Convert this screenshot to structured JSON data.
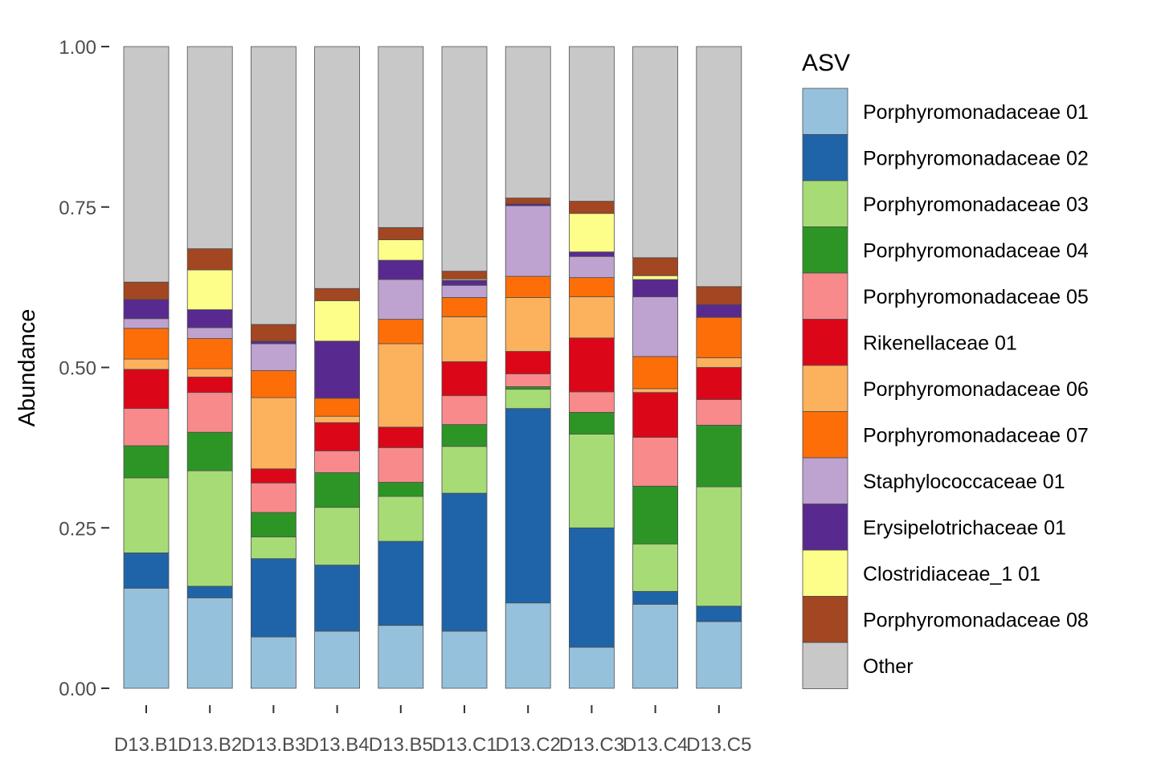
{
  "chart_data": {
    "type": "bar",
    "stacked": true,
    "ylabel": "Abundance",
    "xlabel": "",
    "ylim": [
      0,
      1
    ],
    "yticks": [
      "0.00",
      "0.25",
      "0.50",
      "0.75",
      "1.00"
    ],
    "ytick_values": [
      0,
      0.25,
      0.5,
      0.75,
      1
    ],
    "categories": [
      "D13.B1",
      "D13.B2",
      "D13.B3",
      "D13.B4",
      "D13.B5",
      "D13.C1",
      "D13.C2",
      "D13.C3",
      "D13.C4",
      "D13.C5"
    ],
    "legend": {
      "title": "ASV",
      "position": "right"
    },
    "series": [
      {
        "name": "Porphyromonadaceae 01",
        "color": "#96c1dc",
        "values": [
          0.156,
          0.141,
          0.08,
          0.089,
          0.098,
          0.089,
          0.133,
          0.064,
          0.131,
          0.104
        ]
      },
      {
        "name": "Porphyromonadaceae 02",
        "color": "#1f64a8",
        "values": [
          0.055,
          0.018,
          0.122,
          0.103,
          0.131,
          0.215,
          0.303,
          0.186,
          0.02,
          0.024
        ]
      },
      {
        "name": "Porphyromonadaceae 03",
        "color": "#a7db76",
        "values": [
          0.117,
          0.18,
          0.034,
          0.09,
          0.07,
          0.073,
          0.03,
          0.146,
          0.074,
          0.186
        ]
      },
      {
        "name": "Porphyromonadaceae 04",
        "color": "#2d9525",
        "values": [
          0.05,
          0.06,
          0.038,
          0.054,
          0.022,
          0.034,
          0.004,
          0.034,
          0.09,
          0.096
        ]
      },
      {
        "name": "Porphyromonadaceae 05",
        "color": "#f88a8c",
        "values": [
          0.058,
          0.062,
          0.046,
          0.034,
          0.054,
          0.045,
          0.02,
          0.032,
          0.076,
          0.04
        ]
      },
      {
        "name": "Rikenellaceae 01",
        "color": "#dc0619",
        "values": [
          0.061,
          0.024,
          0.022,
          0.044,
          0.032,
          0.053,
          0.035,
          0.084,
          0.07,
          0.05
        ]
      },
      {
        "name": "Porphyromonadaceae 06",
        "color": "#fcb15d",
        "values": [
          0.016,
          0.013,
          0.111,
          0.01,
          0.13,
          0.07,
          0.084,
          0.064,
          0.006,
          0.015
        ]
      },
      {
        "name": "Porphyromonadaceae 07",
        "color": "#fd6e09",
        "values": [
          0.048,
          0.047,
          0.042,
          0.028,
          0.038,
          0.03,
          0.033,
          0.03,
          0.05,
          0.063
        ]
      },
      {
        "name": "Staphylococcaceae 01",
        "color": "#bea2cf",
        "values": [
          0.015,
          0.017,
          0.042,
          0.0,
          0.062,
          0.019,
          0.11,
          0.033,
          0.093,
          0.0
        ]
      },
      {
        "name": "Erysipelotrichaceae 01",
        "color": "#582a8f",
        "values": [
          0.03,
          0.028,
          0.004,
          0.089,
          0.03,
          0.008,
          0.003,
          0.007,
          0.027,
          0.02
        ]
      },
      {
        "name": "Clostridiaceae_1 01",
        "color": "#fdfe8a",
        "values": [
          0.0,
          0.062,
          0.0,
          0.063,
          0.032,
          0.002,
          0.0,
          0.06,
          0.006,
          0.0
        ]
      },
      {
        "name": "Porphyromonadaceae 08",
        "color": "#a34622",
        "values": [
          0.027,
          0.033,
          0.026,
          0.019,
          0.019,
          0.012,
          0.009,
          0.019,
          0.028,
          0.028
        ]
      },
      {
        "name": "Other",
        "color": "#c8c8c8",
        "values": [
          0.367,
          0.315,
          0.433,
          0.377,
          0.282,
          0.35,
          0.236,
          0.241,
          0.329,
          0.374
        ]
      }
    ]
  }
}
